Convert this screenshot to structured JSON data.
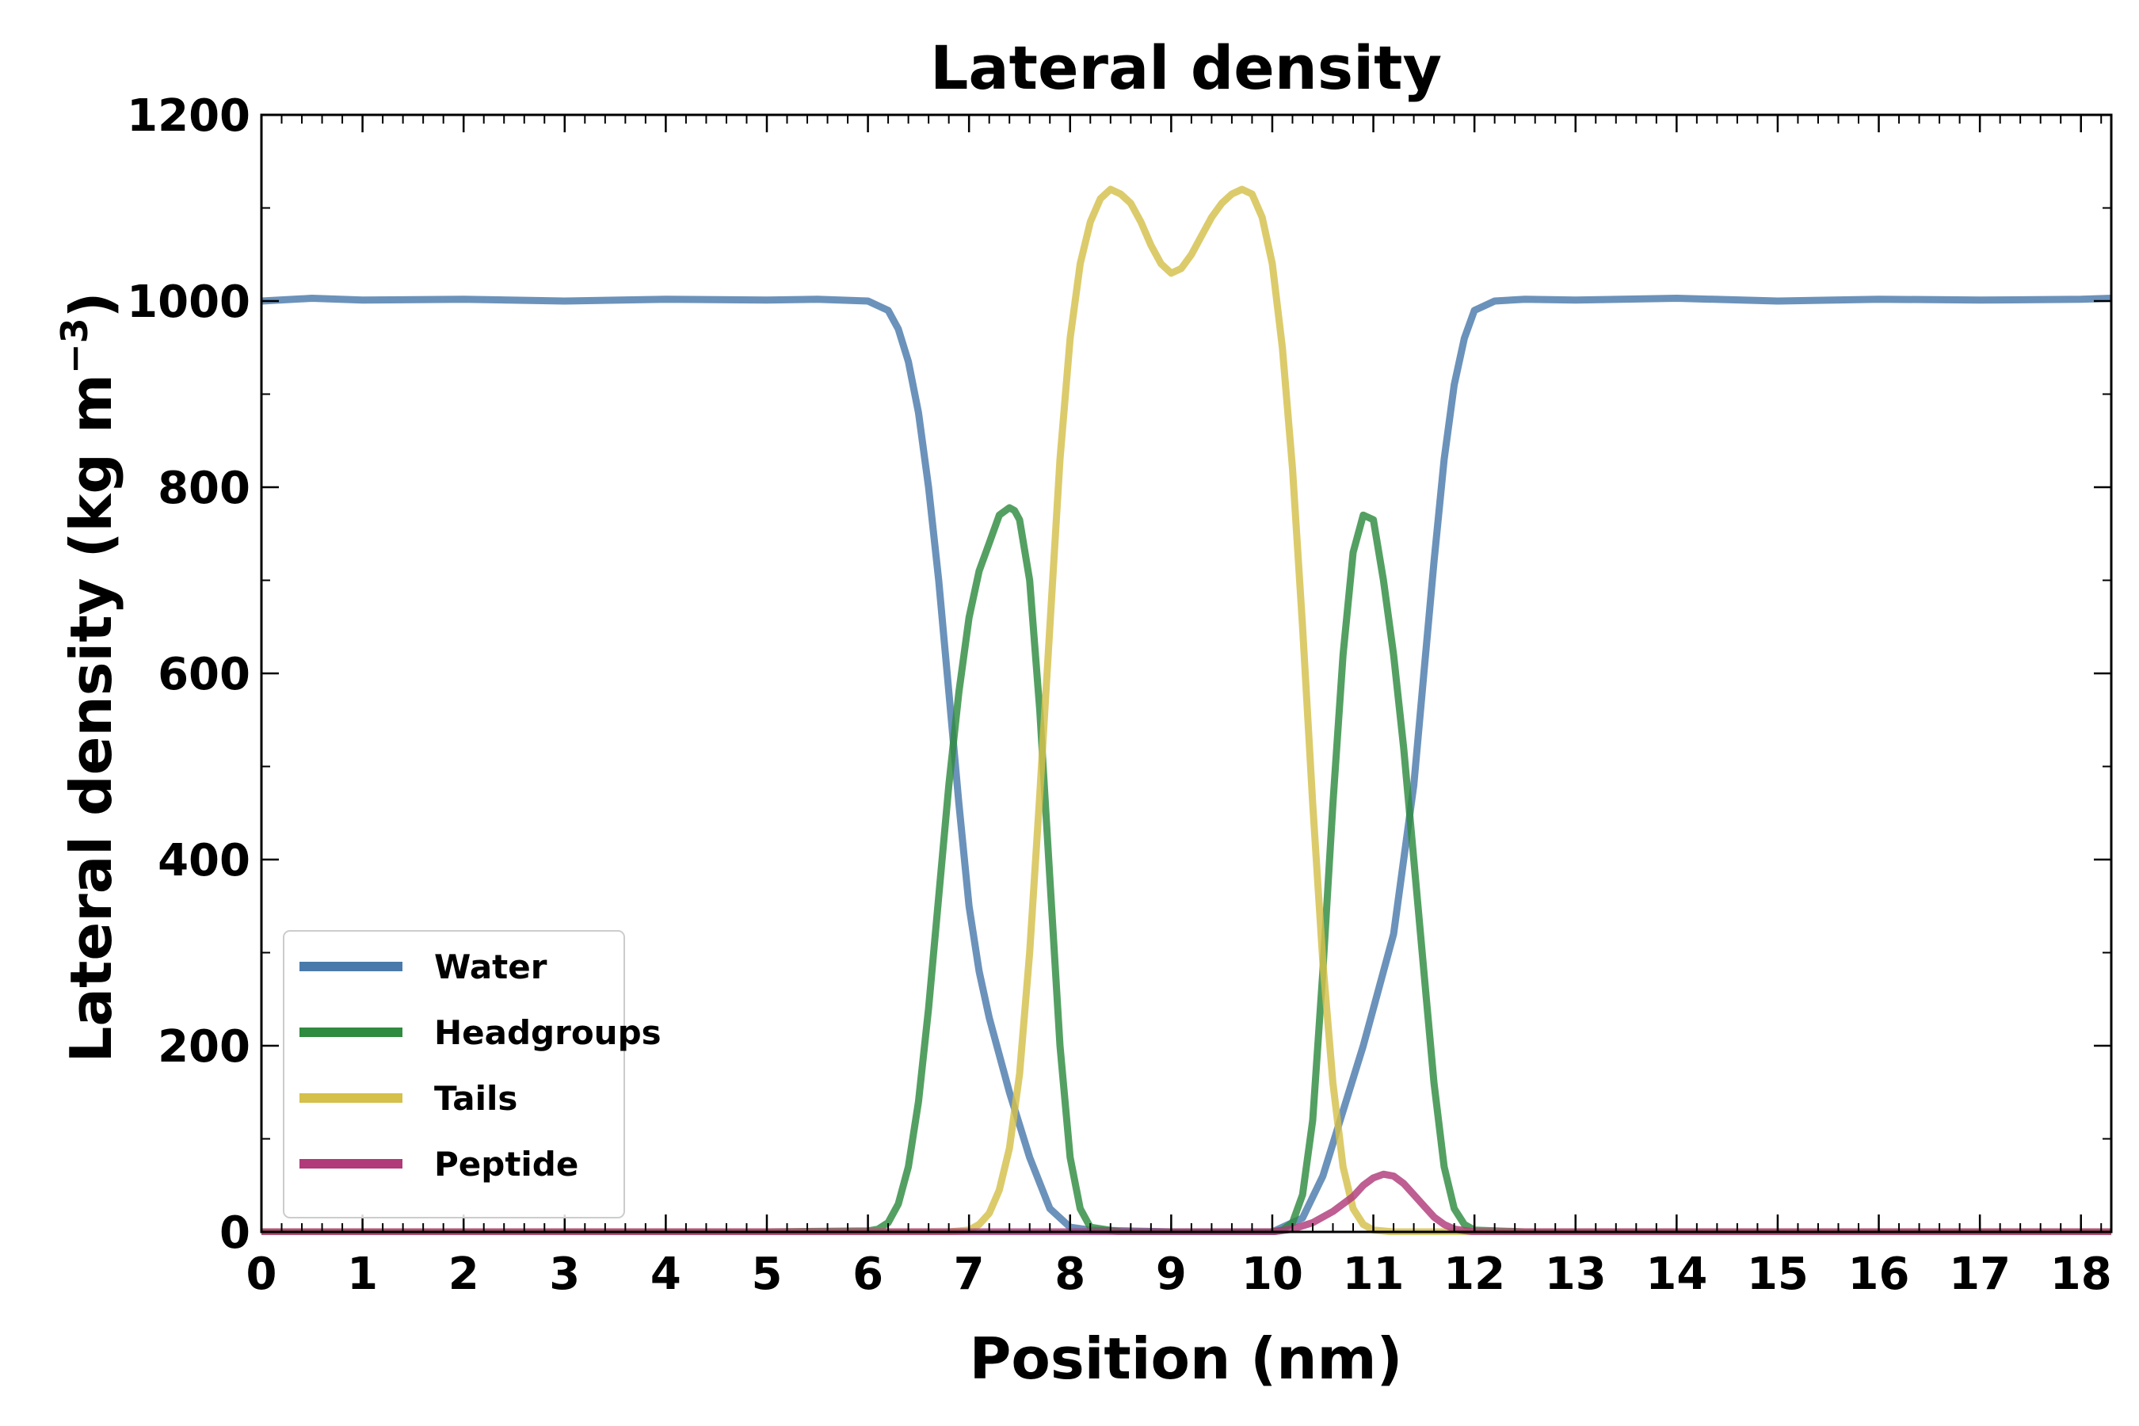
{
  "chart_data": {
    "type": "line",
    "title": "Lateral density",
    "xlabel": "Position (nm)",
    "ylabel": "Lateral density (kg m−3)",
    "ylabel_main": "Lateral density (kg m",
    "ylabel_sup": "−3",
    "ylabel_close": ")",
    "xlim": [
      0,
      18.3
    ],
    "ylim": [
      0,
      1200
    ],
    "xticks": [
      0,
      1,
      2,
      3,
      4,
      5,
      6,
      7,
      8,
      9,
      10,
      11,
      12,
      13,
      14,
      15,
      16,
      17,
      18
    ],
    "yticks": [
      0,
      200,
      400,
      600,
      800,
      1000,
      1200
    ],
    "grid": false,
    "legend_position": "lower-left",
    "series": [
      {
        "name": "Water",
        "color": "#4a7aab",
        "x": [
          0,
          0.5,
          1,
          2,
          3,
          4,
          5,
          5.5,
          6,
          6.2,
          6.3,
          6.4,
          6.5,
          6.6,
          6.7,
          6.8,
          6.9,
          7.0,
          7.1,
          7.2,
          7.4,
          7.6,
          7.8,
          8.0,
          8.2,
          9,
          10.0,
          10.3,
          10.5,
          10.7,
          10.9,
          11.0,
          11.2,
          11.4,
          11.5,
          11.6,
          11.7,
          11.8,
          11.9,
          12.0,
          12.2,
          12.5,
          13,
          14,
          15,
          16,
          17,
          18,
          18.3
        ],
        "y": [
          1000,
          1003,
          1001,
          1002,
          1000,
          1002,
          1001,
          1002,
          1000,
          990,
          970,
          935,
          880,
          800,
          700,
          580,
          460,
          350,
          280,
          230,
          150,
          80,
          25,
          5,
          2,
          0,
          0,
          15,
          60,
          130,
          200,
          240,
          320,
          480,
          600,
          720,
          830,
          910,
          960,
          990,
          1000,
          1002,
          1001,
          1003,
          1000,
          1002,
          1001,
          1002,
          1003
        ]
      },
      {
        "name": "Headgroups",
        "color": "#2e8b3f",
        "x": [
          0,
          5,
          6,
          6.1,
          6.2,
          6.3,
          6.4,
          6.5,
          6.6,
          6.7,
          6.8,
          6.9,
          7.0,
          7.1,
          7.2,
          7.3,
          7.4,
          7.45,
          7.5,
          7.6,
          7.7,
          7.8,
          7.9,
          8.0,
          8.1,
          8.2,
          8.5,
          9,
          10.0,
          10.1,
          10.2,
          10.3,
          10.4,
          10.5,
          10.6,
          10.7,
          10.8,
          10.9,
          11.0,
          11.1,
          11.2,
          11.3,
          11.4,
          11.5,
          11.6,
          11.7,
          11.8,
          11.9,
          12.0,
          12.5,
          18.3
        ],
        "y": [
          0,
          0,
          1,
          3,
          10,
          30,
          70,
          140,
          240,
          360,
          480,
          580,
          660,
          710,
          740,
          770,
          778,
          775,
          765,
          700,
          560,
          380,
          200,
          80,
          25,
          5,
          0,
          0,
          0,
          2,
          10,
          40,
          120,
          280,
          460,
          620,
          730,
          770,
          765,
          700,
          620,
          520,
          400,
          280,
          160,
          70,
          25,
          8,
          2,
          0,
          0
        ]
      },
      {
        "name": "Tails",
        "color": "#d4c04a",
        "x": [
          0,
          6.8,
          7.0,
          7.1,
          7.2,
          7.3,
          7.4,
          7.5,
          7.6,
          7.7,
          7.8,
          7.9,
          8.0,
          8.1,
          8.2,
          8.3,
          8.4,
          8.5,
          8.6,
          8.7,
          8.8,
          8.9,
          9.0,
          9.1,
          9.2,
          9.3,
          9.4,
          9.5,
          9.6,
          9.7,
          9.8,
          9.9,
          10.0,
          10.1,
          10.2,
          10.3,
          10.4,
          10.5,
          10.6,
          10.7,
          10.8,
          10.9,
          11.0,
          11.2,
          18.3
        ],
        "y": [
          0,
          0,
          2,
          8,
          20,
          45,
          90,
          170,
          300,
          470,
          650,
          830,
          960,
          1040,
          1085,
          1110,
          1120,
          1115,
          1105,
          1085,
          1060,
          1040,
          1030,
          1035,
          1050,
          1070,
          1090,
          1105,
          1115,
          1120,
          1115,
          1090,
          1040,
          950,
          820,
          650,
          460,
          290,
          160,
          70,
          25,
          8,
          2,
          0,
          0
        ]
      },
      {
        "name": "Peptide",
        "color": "#b03a7a",
        "x": [
          0,
          6.5,
          7.0,
          7.5,
          8.0,
          9,
          10.0,
          10.2,
          10.4,
          10.6,
          10.8,
          10.9,
          11.0,
          11.1,
          11.2,
          11.3,
          11.4,
          11.5,
          11.6,
          11.7,
          11.8,
          12.0,
          12.2,
          18.3
        ],
        "y": [
          0,
          0,
          0,
          0,
          0,
          0,
          0,
          3,
          10,
          22,
          38,
          50,
          58,
          62,
          60,
          52,
          40,
          28,
          16,
          8,
          3,
          0,
          0,
          0
        ]
      }
    ]
  }
}
